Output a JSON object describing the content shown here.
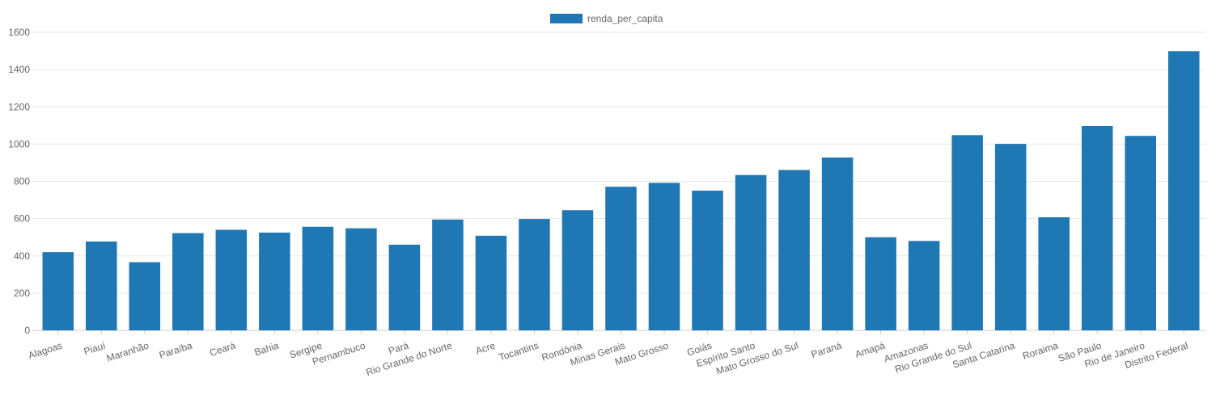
{
  "chart_data": {
    "type": "bar",
    "categories": [
      "Alagoas",
      "Piauí",
      "Maranhão",
      "Paraíba",
      "Ceará",
      "Bahia",
      "Sergipe",
      "Pernambuco",
      "Pará",
      "Rio Grande do Norte",
      "Acre",
      "Tocantins",
      "Rondônia",
      "Minas Gerais",
      "Mato Grosso",
      "Goiás",
      "Espírito Santo",
      "Mato Grosso do Sul",
      "Paraná",
      "Amapá",
      "Amazonas",
      "Rio Grande do Sul",
      "Santa Catarina",
      "Roraima",
      "São Paulo",
      "Rio de Janeiro",
      "Distrito Federal"
    ],
    "series": [
      {
        "name": "renda_per_capita",
        "values": [
          420,
          477,
          366,
          522,
          540,
          525,
          556,
          548,
          460,
          595,
          508,
          598,
          645,
          771,
          792,
          750,
          834,
          861,
          928,
          500,
          480,
          1048,
          1001,
          607,
          1097,
          1044,
          1499
        ],
        "color": "#1f77b4"
      }
    ],
    "y_ticks": [
      0,
      200,
      400,
      600,
      800,
      1000,
      1200,
      1400,
      1600
    ],
    "ylim": [
      0,
      1600
    ],
    "grid": true,
    "legend": {
      "position": "top-center"
    },
    "colors": {
      "bar": "#1f77b4",
      "grid": "#e6e6e6",
      "axis": "#cccccc",
      "text": "#666666"
    }
  }
}
